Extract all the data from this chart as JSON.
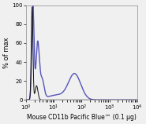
{
  "title": "",
  "xlabel": "Mouse CD11b Pacific Blue™ (0.1 µg)",
  "ylabel": "% of max",
  "xlim_log": [
    0,
    4
  ],
  "ylim": [
    0,
    100
  ],
  "xlabel_fontsize": 5.5,
  "ylabel_fontsize": 6,
  "tick_fontsize": 5,
  "background_color": "#f0f0f0",
  "blue_color": "#5555bb",
  "black_color": "#111111",
  "blue_linewidth": 1.0,
  "black_linewidth": 0.7
}
